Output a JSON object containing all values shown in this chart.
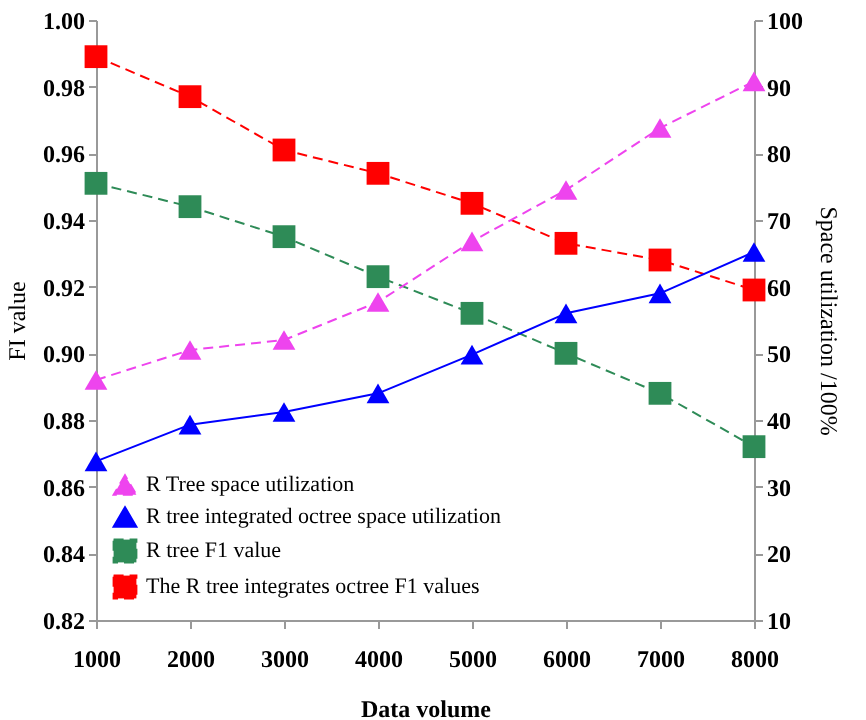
{
  "chart_data": {
    "type": "line",
    "xlabel": "Data volume",
    "ylabel": "FI value",
    "y2label": "Space utilization /100%",
    "x": [
      1000,
      2000,
      3000,
      4000,
      5000,
      6000,
      7000,
      8000
    ],
    "xlim": [
      1000,
      8000
    ],
    "xticks": [
      1000,
      2000,
      3000,
      4000,
      5000,
      6000,
      7000,
      8000
    ],
    "ylim": [
      0.82,
      1.0
    ],
    "yticks": [
      {
        "value": 0.82,
        "label": "0.82"
      },
      {
        "value": 0.84,
        "label": "0.84"
      },
      {
        "value": 0.86,
        "label": "0.86"
      },
      {
        "value": 0.88,
        "label": "0.88"
      },
      {
        "value": 0.9,
        "label": "0.90"
      },
      {
        "value": 0.92,
        "label": "0.92"
      },
      {
        "value": 0.94,
        "label": "0.94"
      },
      {
        "value": 0.96,
        "label": "0.96"
      },
      {
        "value": 0.98,
        "label": "0.98"
      },
      {
        "value": 1.0,
        "label": "1.00"
      }
    ],
    "y2lim": [
      10,
      100
    ],
    "y2ticks": [
      10,
      20,
      30,
      40,
      50,
      60,
      70,
      80,
      90,
      100
    ],
    "grid": false,
    "legend": "bottom left",
    "series": [
      {
        "name": "R Tree space utilization",
        "color": "#ee44ee",
        "axis": "y2",
        "marker": "triangle",
        "line_style": "dashed",
        "values": [
          46,
          50.5,
          52,
          57.7,
          66.8,
          74.5,
          83.8,
          90.8
        ]
      },
      {
        "name": "R tree integrated octree space utilization",
        "color": "#0000ff",
        "axis": "y2",
        "marker": "triangle",
        "line_style": "solid",
        "values": [
          33.8,
          39.3,
          41.2,
          44,
          49.8,
          56,
          59,
          65.2
        ]
      },
      {
        "name": "R tree F1 value",
        "color": "#2e8b57",
        "marker": "square",
        "line_style": "dashed",
        "values": [
          0.951,
          0.944,
          0.935,
          0.923,
          0.912,
          0.9,
          0.888,
          0.872
        ]
      },
      {
        "name": "The R tree integrates octree F1 values",
        "color": "#ff0000",
        "marker": "square",
        "line_style": "dashed",
        "values": [
          0.989,
          0.977,
          0.961,
          0.954,
          0.945,
          0.933,
          0.928,
          0.919
        ]
      }
    ]
  }
}
